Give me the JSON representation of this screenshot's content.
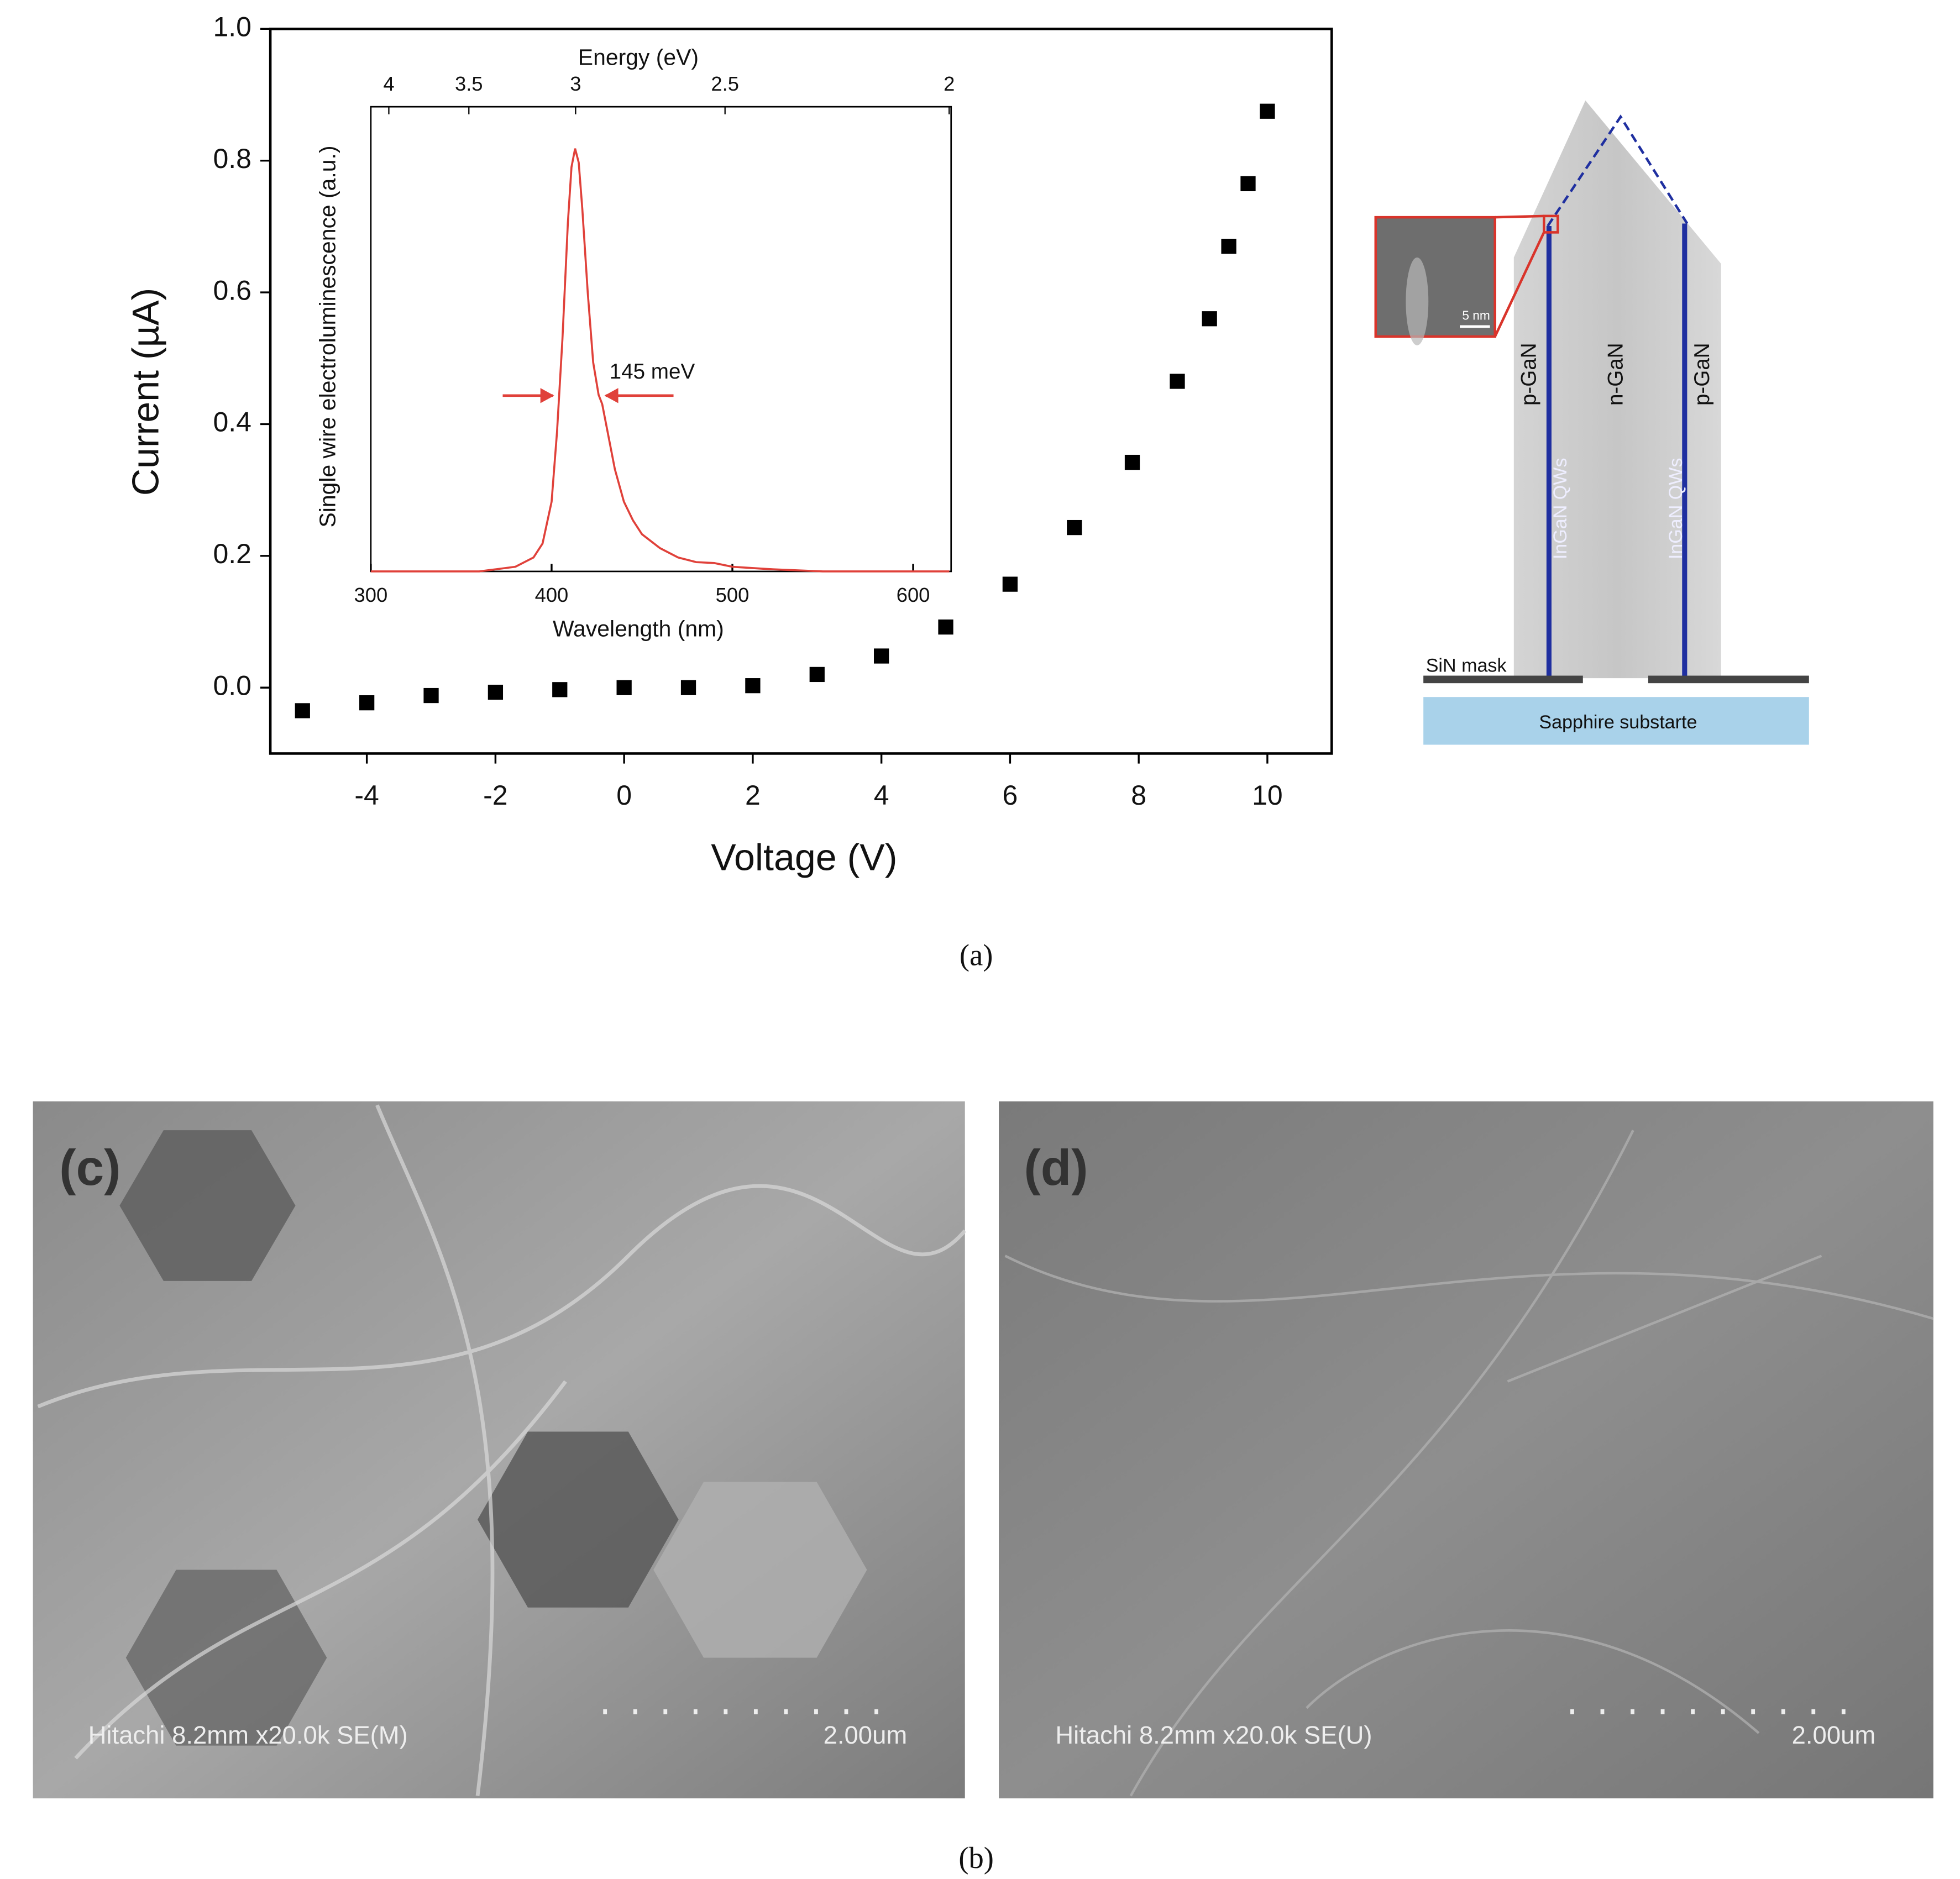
{
  "chart_data": [
    {
      "type": "scatter",
      "x_label": "Voltage (V)",
      "y_label": "Current (µA)",
      "x": [
        -5,
        -4,
        -3,
        -2,
        -1,
        0,
        1,
        2,
        3,
        4,
        5,
        6,
        7,
        7.9,
        8.6,
        9.1,
        9.4,
        9.7,
        10
      ],
      "values": [
        -0.035,
        -0.023,
        -0.012,
        -0.007,
        -0.003,
        0.0,
        0.0,
        0.003,
        0.02,
        0.048,
        0.092,
        0.157,
        0.243,
        0.342,
        0.465,
        0.56,
        0.67,
        0.765,
        0.875
      ],
      "color": "#000000",
      "xlim": [
        -5.5,
        11
      ],
      "xticks": [
        -4,
        -2,
        0,
        2,
        4,
        6,
        8,
        10
      ],
      "ylim": [
        -0.1,
        1.0
      ],
      "yticks": [
        {
          "value": 0,
          "label": "0.0"
        },
        0.2,
        0.4,
        0.6,
        0.8,
        {
          "value": 1,
          "label": "1.0"
        }
      ]
    },
    {
      "type": "line",
      "x_label": "Wavelength (nm)",
      "y_label": "Single wire electroluminescence (a.u.)",
      "top_axis_label": "Energy (eV)",
      "top_ticks": [
        4,
        3.5,
        3,
        2.5,
        2
      ],
      "x": [
        300,
        360,
        370,
        380,
        390,
        395,
        400,
        403,
        406,
        409,
        411,
        413,
        415,
        417,
        420,
        423,
        426,
        428,
        430,
        435,
        440,
        445,
        450,
        460,
        470,
        480,
        490,
        500,
        520,
        550,
        620
      ],
      "values": [
        0,
        0,
        0.005,
        0.01,
        0.03,
        0.06,
        0.15,
        0.3,
        0.5,
        0.75,
        0.87,
        0.91,
        0.88,
        0.78,
        0.6,
        0.45,
        0.38,
        0.36,
        0.32,
        0.22,
        0.15,
        0.11,
        0.08,
        0.05,
        0.03,
        0.02,
        0.018,
        0.01,
        0.005,
        0,
        0
      ],
      "color": "#e0413a",
      "xlim": [
        300,
        621
      ],
      "xticks": [
        300,
        400,
        500,
        600
      ],
      "ylim": [
        0,
        1
      ],
      "annotation": "145 meV"
    }
  ],
  "diagram": {
    "left": "p-GaN",
    "center": "n-GaN",
    "right": "p-GaN",
    "qw_left": "InGaN QWs",
    "qw_right": "InGaN QWs",
    "mask": "SiN mask",
    "substrate": "Sapphire substarte",
    "scale": "5 nm"
  },
  "captions": {
    "a": "(a)",
    "b": "(b)"
  },
  "sem": [
    {
      "panel": "(c)",
      "info": "Hitachi 8.2mm x20.0k SE(M)",
      "scale": "2.00um"
    },
    {
      "panel": "(d)",
      "info": "Hitachi 8.2mm x20.0k SE(U)",
      "scale": "2.00um"
    }
  ]
}
